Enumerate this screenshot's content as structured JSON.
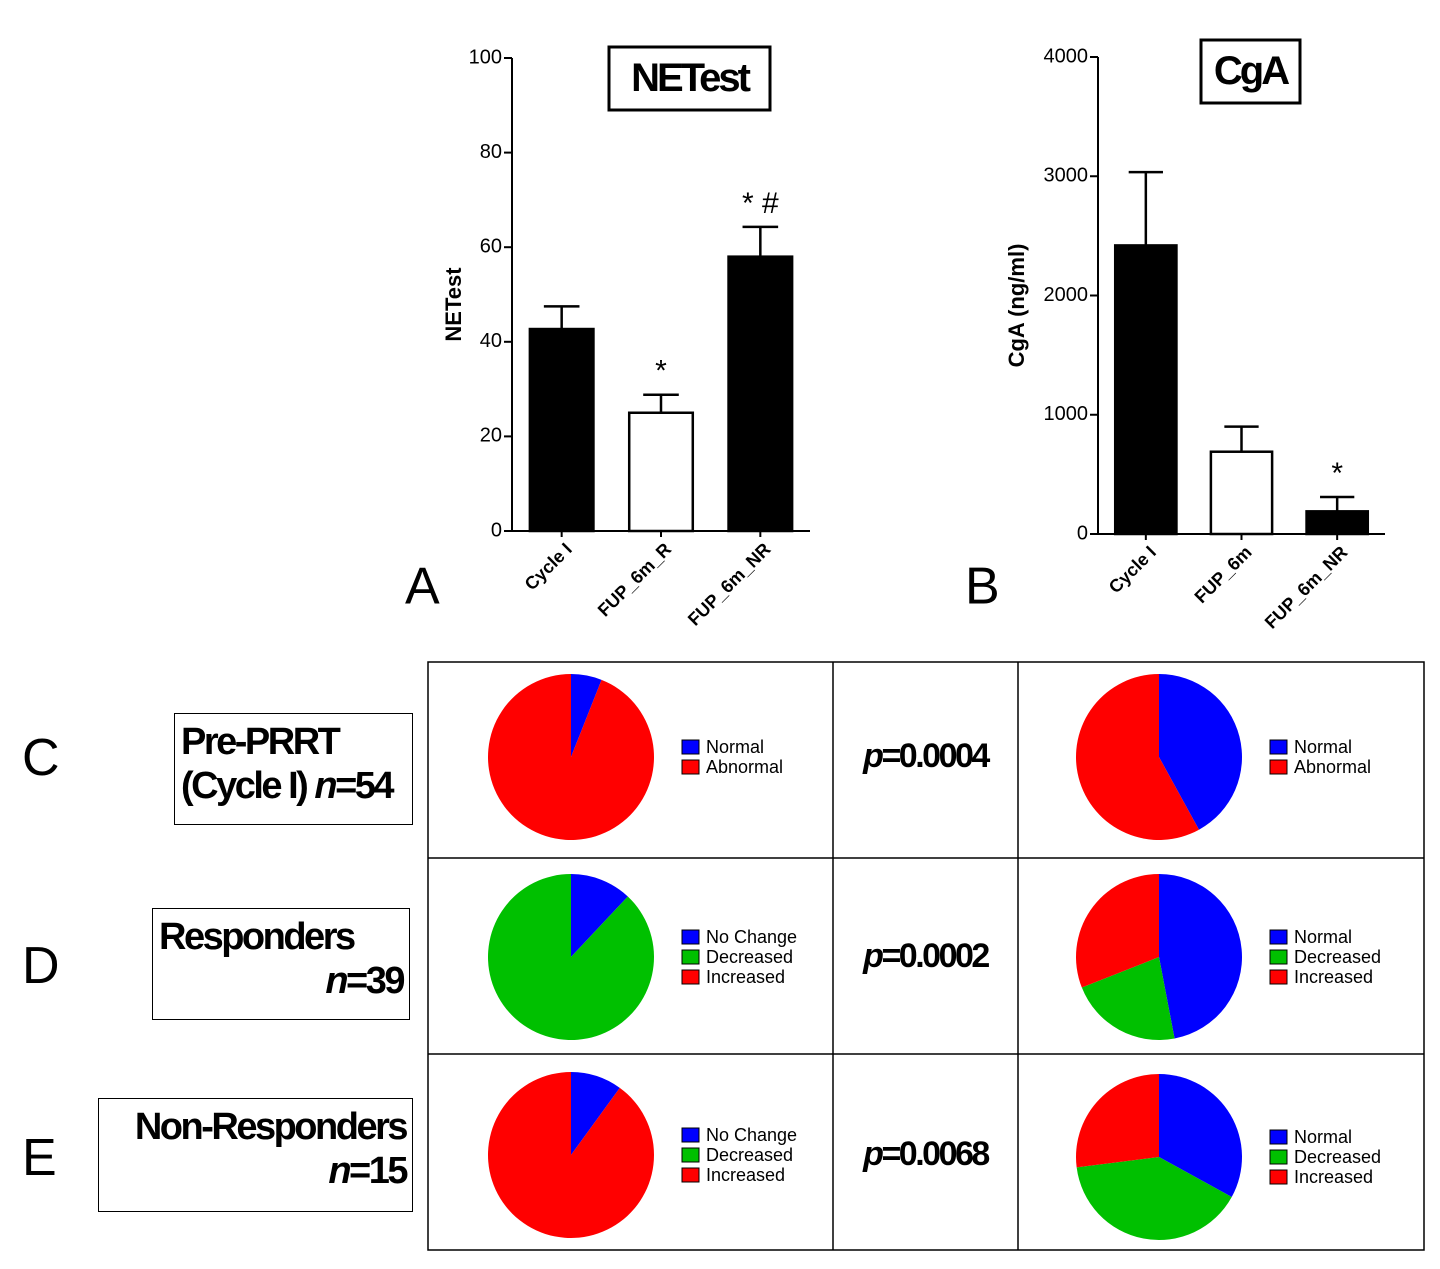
{
  "chart_data": [
    {
      "type": "bar",
      "panel": "A",
      "title": "NETest",
      "y_label": "NETest",
      "categories": [
        "Cycle I",
        "FUP_6m_R",
        "FUP_6m_NR"
      ],
      "values": [
        42.7,
        25,
        58
      ],
      "errors": [
        4.8,
        3.8,
        6.3
      ],
      "colors": [
        "#000000",
        "#ffffff",
        "#000000"
      ],
      "annotations": [
        null,
        "*",
        "* #"
      ],
      "ylim": [
        0,
        100
      ],
      "yticks": [
        0,
        20,
        40,
        60,
        80,
        100
      ]
    },
    {
      "type": "bar",
      "panel": "B",
      "title": "CgA",
      "y_label": "CgA (ng/ml)",
      "categories": [
        "Cycle I",
        "FUP_6m",
        "FUP_6m_NR"
      ],
      "values": [
        2420,
        690,
        190
      ],
      "errors": [
        615,
        210,
        120
      ],
      "colors": [
        "#000000",
        "#ffffff",
        "#000000"
      ],
      "annotations": [
        null,
        null,
        "*"
      ],
      "ylim": [
        0,
        4000
      ],
      "yticks": [
        0,
        1000,
        2000,
        3000,
        4000
      ]
    },
    {
      "type": "pie",
      "categories": [
        "Normal",
        "Abnormal"
      ],
      "values": [
        6,
        94
      ],
      "colors": [
        "#0000ff",
        "#ff0000"
      ]
    },
    {
      "type": "pie",
      "categories": [
        "Normal",
        "Abnormal"
      ],
      "values": [
        42,
        58
      ],
      "colors": [
        "#0000ff",
        "#ff0000"
      ]
    },
    {
      "type": "pie",
      "categories": [
        "No Change",
        "Decreased",
        "Increased"
      ],
      "values": [
        12,
        88,
        0
      ],
      "colors": [
        "#0000ff",
        "#00c000",
        "#ff0000"
      ]
    },
    {
      "type": "pie",
      "categories": [
        "Normal",
        "Decreased",
        "Increased"
      ],
      "values": [
        47,
        22,
        31
      ],
      "colors": [
        "#0000ff",
        "#00c000",
        "#ff0000"
      ]
    },
    {
      "type": "pie",
      "categories": [
        "No Change",
        "Decreased",
        "Increased"
      ],
      "values": [
        10,
        0,
        90
      ],
      "colors": [
        "#0000ff",
        "#00c000",
        "#ff0000"
      ]
    },
    {
      "type": "pie",
      "categories": [
        "Normal",
        "Decreased",
        "Increased"
      ],
      "values": [
        33,
        40,
        27
      ],
      "colors": [
        "#0000ff",
        "#00c000",
        "#ff0000"
      ]
    }
  ],
  "rows": [
    {
      "panel": "C",
      "label": "Pre-PRRT",
      "sublabel": "(Cycle I)",
      "count_label": "n=54",
      "p_label": "p=0.0004"
    },
    {
      "panel": "D",
      "label": "Responders",
      "count_label": "n=39",
      "p_label": "p=0.0002"
    },
    {
      "panel": "E",
      "label": "Non-Responders",
      "count_label": "n=15",
      "p_label": "p=0.0068"
    }
  ]
}
